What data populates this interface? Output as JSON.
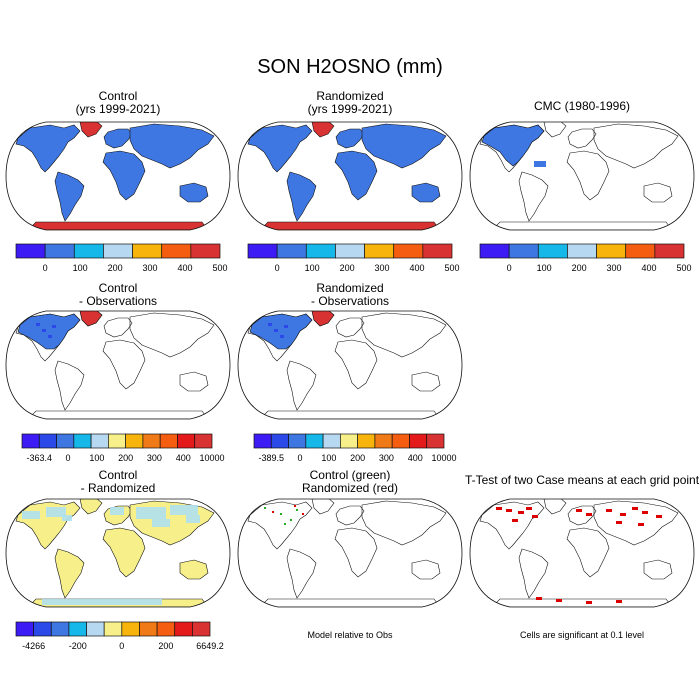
{
  "title": "SON H2OSNO (mm)",
  "palettes": {
    "seven": [
      "#3c1bf5",
      "#3e77e2",
      "#16b8ea",
      "#b6d8f0",
      "#f6b40c",
      "#f55d10",
      "#d93232"
    ],
    "eleven": [
      "#3c1bf5",
      "#2a49e8",
      "#3e77e2",
      "#16b8ea",
      "#b6d8f0",
      "#f7f08a",
      "#f6b40c",
      "#f07a18",
      "#f55d10",
      "#e41a1a",
      "#d93232"
    ],
    "cyan": "#aee0f0",
    "yellow": "#f7f08a",
    "sig": "#dd0000",
    "green": "#20b020"
  },
  "panels": [
    {
      "id": "p1",
      "title": [
        "Control",
        "(yrs 1999-2021)"
      ],
      "style": "full",
      "bar": "seven",
      "ticks": [
        "0",
        "100",
        "200",
        "300",
        "400",
        "500"
      ]
    },
    {
      "id": "p2",
      "title": [
        "Randomized",
        "(yrs 1999-2021)"
      ],
      "style": "full",
      "bar": "seven",
      "ticks": [
        "0",
        "100",
        "200",
        "300",
        "400",
        "500"
      ]
    },
    {
      "id": "p3",
      "title": [
        "CMC (1980-1996)"
      ],
      "style": "cmc",
      "bar": "seven",
      "ticks": [
        "0",
        "100",
        "200",
        "300",
        "400",
        "500"
      ]
    },
    {
      "id": "p4",
      "title": [
        "Control",
        "- Observations"
      ],
      "style": "diffobs",
      "bar": "eleven",
      "ticks": [
        "-363.4",
        "0",
        "100",
        "200",
        "300",
        "400",
        "10000"
      ]
    },
    {
      "id": "p5",
      "title": [
        "Randomized",
        "- Observations"
      ],
      "style": "diffobs",
      "bar": "eleven",
      "ticks": [
        "-389.5",
        "0",
        "100",
        "200",
        "300",
        "400",
        "10000"
      ]
    },
    {
      "id": "p6",
      "title": [
        "Control",
        "- Randomized"
      ],
      "style": "diffcase",
      "bar": "eleven",
      "ticks": [
        "-4266",
        "-200",
        "0",
        "200",
        "6649.2"
      ]
    },
    {
      "id": "p7",
      "title": [
        "Control (green)",
        "Randomized (red)"
      ],
      "style": "outline",
      "bar": null,
      "note": "Model relative to Obs"
    },
    {
      "id": "p8",
      "title": [
        "T-Test of two Case means at each grid point"
      ],
      "style": "ttest",
      "bar": null,
      "note": "Cells are significant at 0.1 level"
    }
  ]
}
